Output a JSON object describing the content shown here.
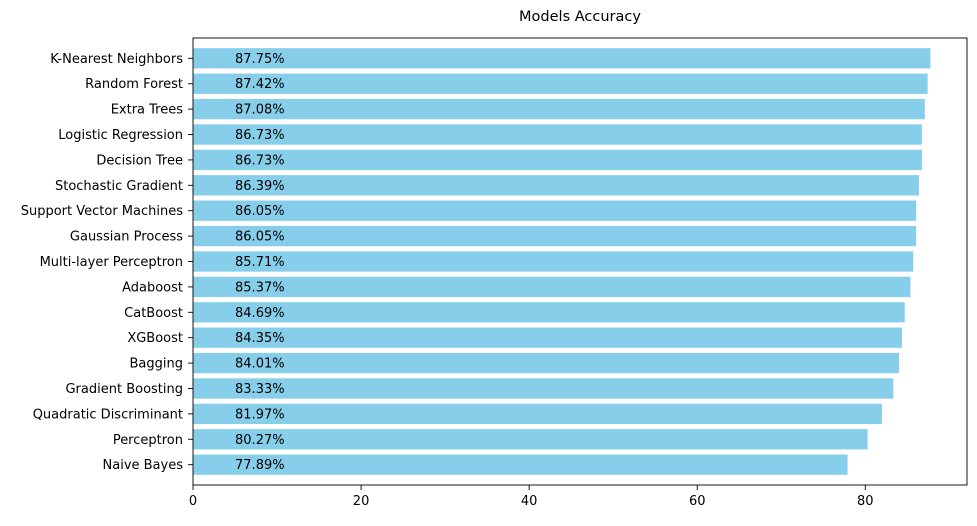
{
  "chart_data": {
    "type": "bar",
    "orientation": "horizontal",
    "title": "Models Accuracy",
    "xlabel": "",
    "ylabel": "",
    "xlim": [
      0,
      92.1
    ],
    "xticks": [
      0,
      20,
      40,
      60,
      80
    ],
    "grid": false,
    "bar_color": "#87CEEB",
    "categories": [
      "K-Nearest Neighbors",
      "Random Forest",
      "Extra Trees",
      "Logistic Regression",
      "Decision Tree",
      "Stochastic Gradient",
      "Support Vector Machines",
      "Gaussian Process",
      "Multi-layer Perceptron",
      "Adaboost",
      "CatBoost",
      "XGBoost",
      "Bagging",
      "Gradient Boosting",
      "Quadratic Discriminant",
      "Perceptron",
      "Naive Bayes"
    ],
    "values": [
      87.75,
      87.42,
      87.08,
      86.73,
      86.73,
      86.39,
      86.05,
      86.05,
      85.71,
      85.37,
      84.69,
      84.35,
      84.01,
      83.33,
      81.97,
      80.27,
      77.89
    ],
    "data_labels": [
      "87.75%",
      "87.42%",
      "87.08%",
      "86.73%",
      "86.73%",
      "86.39%",
      "86.05%",
      "86.05%",
      "85.71%",
      "85.37%",
      "84.69%",
      "84.35%",
      "84.01%",
      "83.33%",
      "81.97%",
      "80.27%",
      "77.89%"
    ]
  }
}
